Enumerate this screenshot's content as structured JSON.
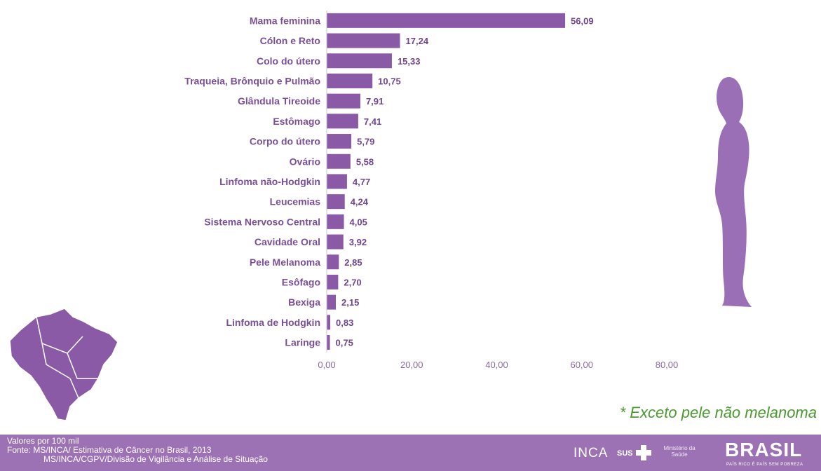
{
  "chart_data": {
    "type": "bar",
    "orientation": "horizontal",
    "categories": [
      "Mama feminina",
      "Cólon e Reto",
      "Colo do útero",
      "Traqueia, Brônquio e Pulmão",
      "Glândula Tireoide",
      "Estômago",
      "Corpo do útero",
      "Ovário",
      "Linfoma não-Hodgkin",
      "Leucemias",
      "Sistema Nervoso Central",
      "Cavidade Oral",
      "Pele Melanoma",
      "Esôfago",
      "Bexiga",
      "Linfoma de Hodgkin",
      "Laringe"
    ],
    "values": [
      56.09,
      17.24,
      15.33,
      10.75,
      7.91,
      7.41,
      5.79,
      5.58,
      4.77,
      4.24,
      4.05,
      3.92,
      2.85,
      2.7,
      2.15,
      0.83,
      0.75
    ],
    "value_labels": [
      "56,09",
      "17,24",
      "15,33",
      "10,75",
      "7,91",
      "7,41",
      "5,79",
      "5,58",
      "4,77",
      "4,24",
      "4,05",
      "3,92",
      "2,85",
      "2,70",
      "2,15",
      "0,83",
      "0,75"
    ],
    "xlim": [
      0,
      80
    ],
    "xticks": [
      0,
      20,
      40,
      60,
      80
    ],
    "xtick_labels": [
      "0,00",
      "20,00",
      "40,00",
      "60,00",
      "80,00"
    ],
    "grid": false,
    "legend": "none",
    "bar_color": "#8a5aa6"
  },
  "note": "* Exceto pele não melanoma",
  "footer": {
    "line1": "Valores por 100 mil",
    "line2": "Fonte: MS/INCA/ Estimativa de Câncer no Brasil, 2013",
    "line3": "MS/INCA/CGPV/Divisão de Vigilância e Análise de Situação",
    "logo_inca": "INCA",
    "logo_sus": "SUS",
    "logo_ministerio": "Ministério da Saúde",
    "logo_brasil": "BRASIL",
    "logo_slogan": "PAÍS RICO É PAÍS SEM POBREZA"
  },
  "colors": {
    "bar": "#8a5aa6",
    "silhouette": "#9a6fb5",
    "footer": "#9d72b4",
    "note": "#4a9a2f"
  }
}
